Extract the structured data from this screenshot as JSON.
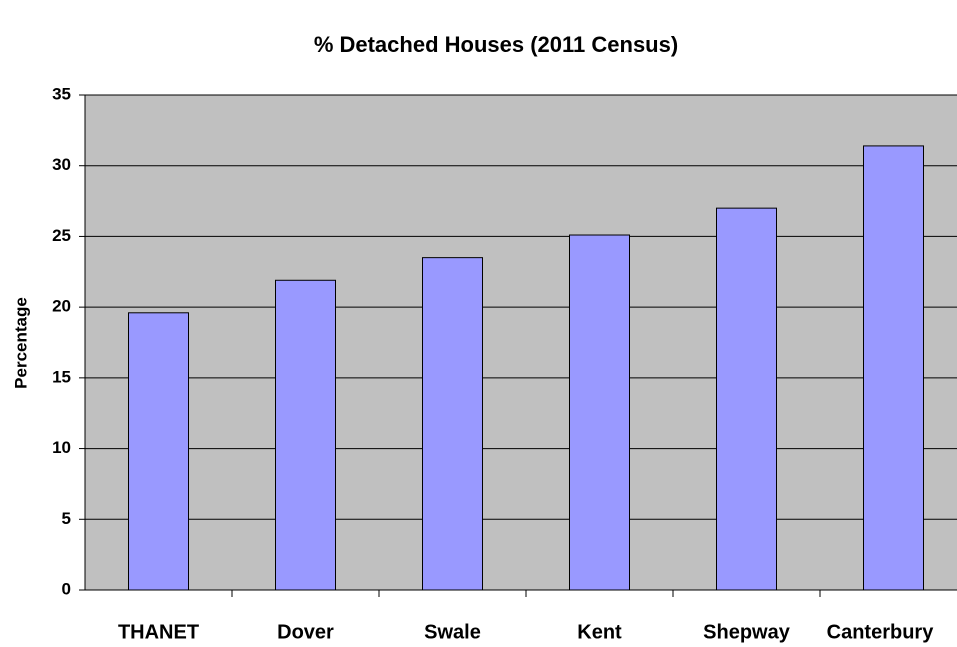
{
  "chart_data": {
    "type": "bar",
    "title": "% Detached Houses (2011 Census)",
    "y_label": "Percentage",
    "categories": [
      "THANET",
      "Dover",
      "Swale",
      "Kent",
      "Shepway",
      "Canterbury"
    ],
    "values": [
      19.6,
      21.9,
      23.5,
      25.1,
      27.0,
      31.4
    ],
    "color": "#9999ff",
    "ylim": [
      0,
      35
    ],
    "yticks": [
      0,
      5,
      10,
      15,
      20,
      25,
      30,
      35
    ],
    "grid": true
  }
}
